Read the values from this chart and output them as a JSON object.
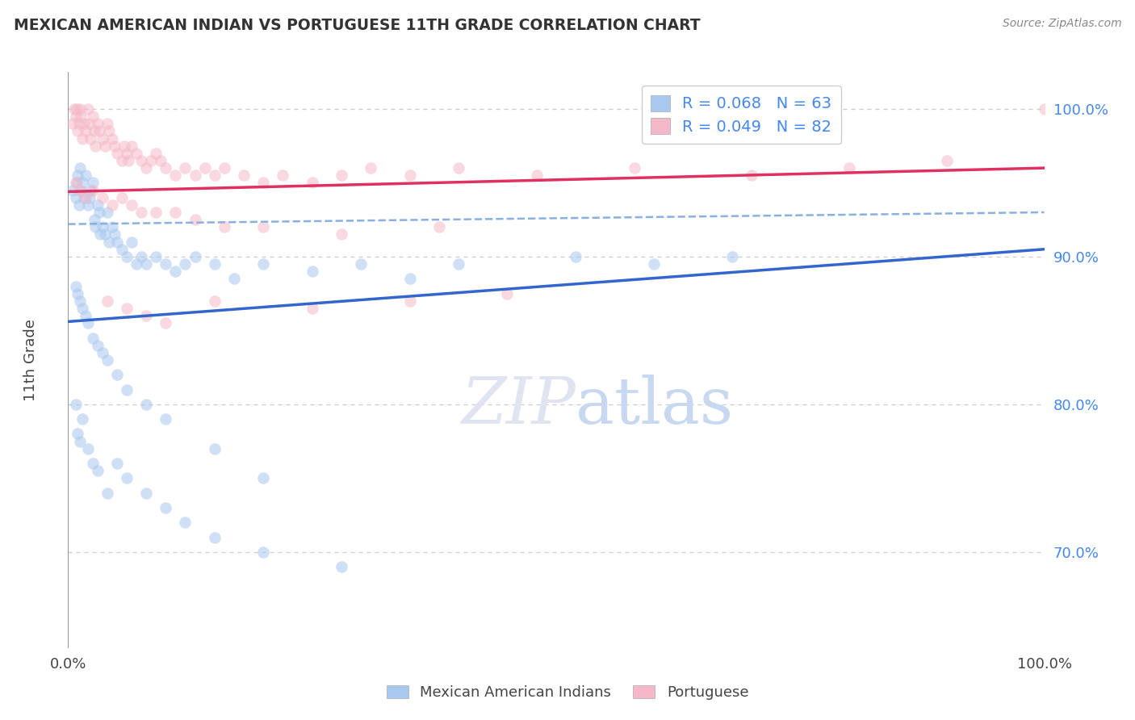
{
  "title": "MEXICAN AMERICAN INDIAN VS PORTUGUESE 11TH GRADE CORRELATION CHART",
  "source_text": "Source: ZipAtlas.com",
  "ylabel": "11th Grade",
  "xlim": [
    0.0,
    1.0
  ],
  "ylim": [
    0.635,
    1.025
  ],
  "ytick_values": [
    0.7,
    0.8,
    0.9,
    1.0
  ],
  "legend_entry1": "R = 0.068   N = 63",
  "legend_entry2": "R = 0.049   N = 82",
  "blue_color": "#a8c8f0",
  "pink_color": "#f5b8c8",
  "blue_line_color": "#3366cc",
  "pink_line_color": "#e03060",
  "dashed_line_color": "#8ab0e0",
  "blue_scatter_x": [
    0.005,
    0.008,
    0.009,
    0.01,
    0.011,
    0.012,
    0.013,
    0.015,
    0.016,
    0.018,
    0.02,
    0.022,
    0.023,
    0.025,
    0.027,
    0.028,
    0.03,
    0.032,
    0.033,
    0.035,
    0.038,
    0.04,
    0.042,
    0.045,
    0.048,
    0.05,
    0.055,
    0.06,
    0.065,
    0.07,
    0.075,
    0.08,
    0.09,
    0.1,
    0.11,
    0.12,
    0.13,
    0.15,
    0.17,
    0.2,
    0.25,
    0.3,
    0.35,
    0.4,
    0.52,
    0.6,
    0.68,
    0.008,
    0.01,
    0.012,
    0.015,
    0.018,
    0.02,
    0.025,
    0.03,
    0.035,
    0.04,
    0.05,
    0.06,
    0.08,
    0.1,
    0.15,
    0.2
  ],
  "blue_scatter_y": [
    0.945,
    0.94,
    0.95,
    0.955,
    0.935,
    0.96,
    0.945,
    0.95,
    0.94,
    0.955,
    0.935,
    0.94,
    0.945,
    0.95,
    0.925,
    0.92,
    0.935,
    0.93,
    0.915,
    0.92,
    0.915,
    0.93,
    0.91,
    0.92,
    0.915,
    0.91,
    0.905,
    0.9,
    0.91,
    0.895,
    0.9,
    0.895,
    0.9,
    0.895,
    0.89,
    0.895,
    0.9,
    0.895,
    0.885,
    0.895,
    0.89,
    0.895,
    0.885,
    0.895,
    0.9,
    0.895,
    0.9,
    0.88,
    0.875,
    0.87,
    0.865,
    0.86,
    0.855,
    0.845,
    0.84,
    0.835,
    0.83,
    0.82,
    0.81,
    0.8,
    0.79,
    0.77,
    0.75
  ],
  "blue_scatter_x2": [
    0.008,
    0.01,
    0.012,
    0.015,
    0.02,
    0.025,
    0.03,
    0.04,
    0.05,
    0.06,
    0.08,
    0.1,
    0.12,
    0.15,
    0.2,
    0.28
  ],
  "blue_scatter_y2": [
    0.8,
    0.78,
    0.775,
    0.79,
    0.77,
    0.76,
    0.755,
    0.74,
    0.76,
    0.75,
    0.74,
    0.73,
    0.72,
    0.71,
    0.7,
    0.69
  ],
  "pink_scatter_x": [
    0.005,
    0.006,
    0.008,
    0.009,
    0.01,
    0.011,
    0.012,
    0.013,
    0.015,
    0.016,
    0.018,
    0.02,
    0.022,
    0.023,
    0.025,
    0.027,
    0.028,
    0.03,
    0.032,
    0.035,
    0.038,
    0.04,
    0.042,
    0.045,
    0.048,
    0.05,
    0.055,
    0.058,
    0.06,
    0.062,
    0.065,
    0.07,
    0.075,
    0.08,
    0.085,
    0.09,
    0.095,
    0.1,
    0.11,
    0.12,
    0.13,
    0.14,
    0.15,
    0.16,
    0.18,
    0.2,
    0.22,
    0.25,
    0.28,
    0.31,
    0.35,
    0.4,
    0.48,
    0.58,
    0.7,
    0.8,
    0.9,
    1.0,
    0.008,
    0.012,
    0.018,
    0.025,
    0.035,
    0.045,
    0.055,
    0.065,
    0.075,
    0.09,
    0.11,
    0.13,
    0.16,
    0.2,
    0.28,
    0.38,
    0.15,
    0.25,
    0.35,
    0.45,
    0.1,
    0.08,
    0.06,
    0.04
  ],
  "pink_scatter_y": [
    0.99,
    1.0,
    0.995,
    1.0,
    0.985,
    0.99,
    1.0,
    0.995,
    0.98,
    0.99,
    0.985,
    1.0,
    0.99,
    0.98,
    0.995,
    0.985,
    0.975,
    0.99,
    0.985,
    0.98,
    0.975,
    0.99,
    0.985,
    0.98,
    0.975,
    0.97,
    0.965,
    0.975,
    0.97,
    0.965,
    0.975,
    0.97,
    0.965,
    0.96,
    0.965,
    0.97,
    0.965,
    0.96,
    0.955,
    0.96,
    0.955,
    0.96,
    0.955,
    0.96,
    0.955,
    0.95,
    0.955,
    0.95,
    0.955,
    0.96,
    0.955,
    0.96,
    0.955,
    0.96,
    0.955,
    0.96,
    0.965,
    1.0,
    0.95,
    0.945,
    0.94,
    0.945,
    0.94,
    0.935,
    0.94,
    0.935,
    0.93,
    0.93,
    0.93,
    0.925,
    0.92,
    0.92,
    0.915,
    0.92,
    0.87,
    0.865,
    0.87,
    0.875,
    0.855,
    0.86,
    0.865,
    0.87
  ],
  "blue_line_y_start": 0.856,
  "blue_line_y_end": 0.905,
  "pink_line_y_start": 0.944,
  "pink_line_y_end": 0.96,
  "dashed_line_y_start": 0.922,
  "dashed_line_y_end": 0.93,
  "grid_color": "#cccccc",
  "background_color": "#ffffff",
  "watermark_color": "#e0e4f0",
  "tick_label_color": "#4488ee",
  "axis_label_color": "#444444"
}
